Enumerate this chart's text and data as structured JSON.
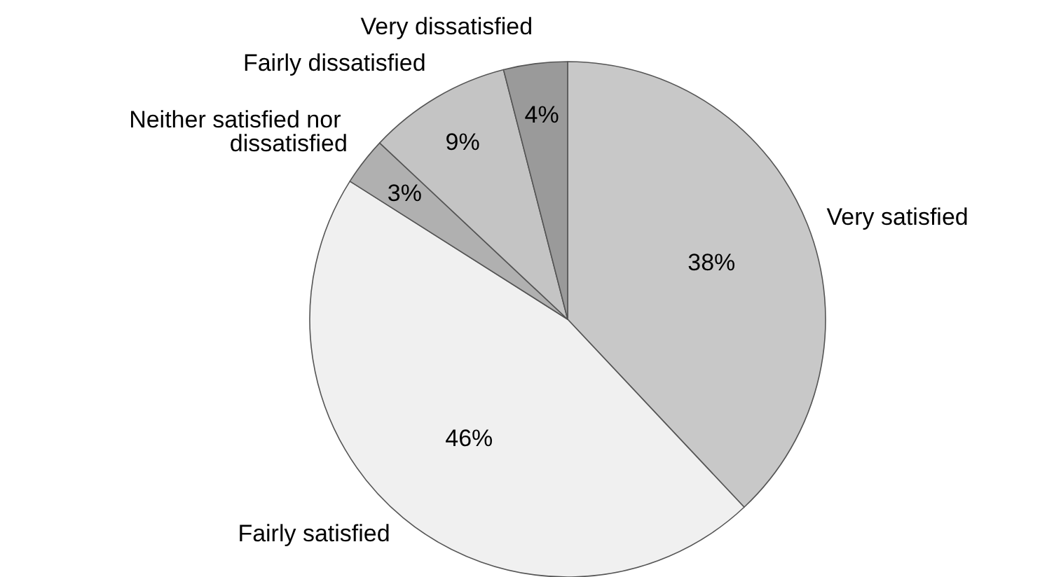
{
  "chart_data": {
    "type": "pie",
    "categories": [
      "Very satisfied",
      "Fairly satisfied",
      "Neither satisfied nor dissatisfied",
      "Fairly dissatisfied",
      "Very dissatisfied"
    ],
    "values": [
      38,
      46,
      3,
      9,
      4
    ],
    "colors": [
      "#c8c8c8",
      "#f0f0f0",
      "#b0b0b0",
      "#c4c4c4",
      "#9a9a9a"
    ],
    "value_labels": [
      "38%",
      "46%",
      "3%",
      "9%",
      "4%"
    ],
    "legend": false
  }
}
